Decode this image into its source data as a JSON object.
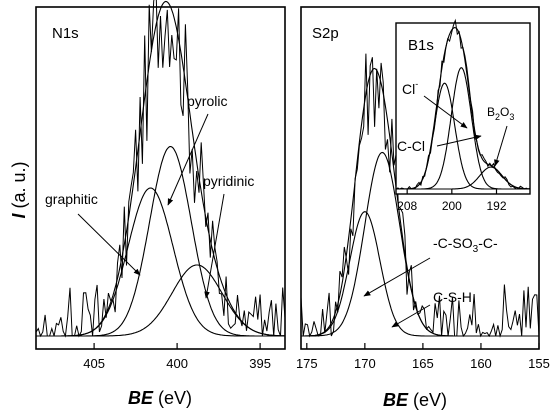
{
  "chart_data": [
    {
      "type": "line",
      "panel": "N1s",
      "title": "N1s",
      "xlabel_main": "BE",
      "xlabel_unit": "(eV)",
      "ylabel_main": "I",
      "ylabel_unit": "(a. u.)",
      "xlim": [
        408.5,
        393.5
      ],
      "ylim": [
        0,
        1.0
      ],
      "xticks": [
        405,
        400,
        395
      ],
      "series": [
        {
          "name": "graphitic",
          "center": 401.6,
          "sigma": 1.35,
          "amp": 0.5
        },
        {
          "name": "pyrolic",
          "center": 400.4,
          "sigma": 1.25,
          "amp": 0.64
        },
        {
          "name": "pyridinic",
          "center": 398.8,
          "sigma": 1.5,
          "amp": 0.24
        }
      ],
      "annotations": [
        "graphitic",
        "pyrolic",
        "pyridinic"
      ]
    },
    {
      "type": "line",
      "panel": "S2p",
      "title": "S2p",
      "xlabel_main": "BE",
      "xlabel_unit": "(eV)",
      "xlim": [
        175.5,
        155
      ],
      "ylim": [
        0,
        1.0
      ],
      "xticks": [
        175,
        170,
        165,
        160,
        155
      ],
      "series": [
        {
          "name": "-C-SO3-C-",
          "center": 170.0,
          "sigma": 1.3,
          "amp": 0.42
        },
        {
          "name": "C-S-H",
          "center": 168.5,
          "sigma": 1.5,
          "amp": 0.62
        }
      ],
      "annotations": [
        "-C-SO3-C-",
        "C-S-H"
      ]
    },
    {
      "type": "line",
      "panel": "B1s-inset",
      "title": "B1s",
      "xlim": [
        210,
        186
      ],
      "ylim": [
        0,
        1.0
      ],
      "xticks": [
        208,
        200,
        192
      ],
      "series": [
        {
          "name": "Cl-",
          "center": 201.3,
          "sigma": 1.8,
          "amp": 0.82
        },
        {
          "name": "C-Cl",
          "center": 198.3,
          "sigma": 1.8,
          "amp": 0.94
        },
        {
          "name": "B2O3",
          "center": 193.0,
          "sigma": 2.0,
          "amp": 0.17
        }
      ],
      "annotations": [
        "Cl-",
        "C-Cl",
        "B2O3"
      ]
    }
  ]
}
